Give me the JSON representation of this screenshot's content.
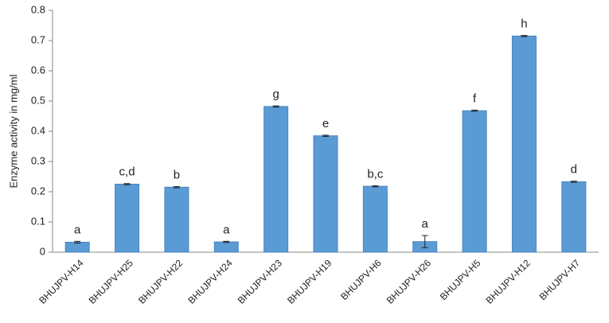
{
  "chart_data": {
    "type": "bar",
    "y_label": "Enzyme activity in mg/ml",
    "categories": [
      "BHUJPV-H14",
      "BHUJPV-H25",
      "BHUJPV-H22",
      "BHUJPV-H24",
      "BHUJPV-H23",
      "BHUJPV-H19",
      "BHUJPV-H6",
      "BHUJPV-H26",
      "BHUJPV-H5",
      "BHUJPV-H12",
      "BHUJPV-H7"
    ],
    "values": [
      0.033,
      0.225,
      0.215,
      0.034,
      0.482,
      0.385,
      0.218,
      0.035,
      0.468,
      0.715,
      0.233
    ],
    "errors": [
      0.003,
      0.002,
      0.002,
      0.002,
      0.002,
      0.002,
      0.002,
      0.02,
      0.002,
      0.002,
      0.002
    ],
    "significance_letters": [
      "a",
      "c,d",
      "b",
      "a",
      "g",
      "e",
      "b,c",
      "a",
      "f",
      "h",
      "d"
    ],
    "color": "#5b9bd5",
    "ylim": [
      0,
      0.8
    ],
    "yticks": [
      0,
      0.1,
      0.2,
      0.3,
      0.4,
      0.5,
      0.6,
      0.7,
      0.8
    ],
    "grid": false
  }
}
